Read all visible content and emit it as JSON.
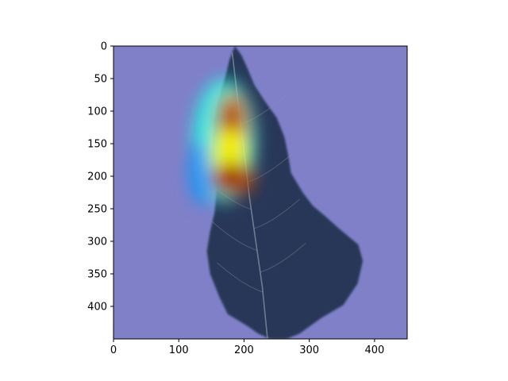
{
  "chart_data": {
    "type": "heatmap",
    "title": "",
    "xlabel": "",
    "ylabel": "",
    "xlim": [
      0,
      450
    ],
    "ylim": [
      450,
      0
    ],
    "x_ticks": [
      0,
      100,
      200,
      300,
      400
    ],
    "y_ticks": [
      0,
      50,
      100,
      150,
      200,
      250,
      300,
      350,
      400
    ],
    "image_size": [
      450,
      450
    ],
    "grid": false,
    "legend": "none",
    "background_overlay_color": "#8080c8",
    "colormap": [
      "#00007f",
      "#0000ff",
      "#00ffff",
      "#ffff00",
      "#ff7f00",
      "#7f0000"
    ],
    "leaf": {
      "outline": [
        [
          186,
          0
        ],
        [
          196,
          14
        ],
        [
          205,
          34
        ],
        [
          216,
          60
        ],
        [
          232,
          85
        ],
        [
          250,
          110
        ],
        [
          262,
          140
        ],
        [
          268,
          170
        ],
        [
          272,
          195
        ],
        [
          290,
          225
        ],
        [
          305,
          245
        ],
        [
          325,
          262
        ],
        [
          345,
          280
        ],
        [
          375,
          305
        ],
        [
          382,
          330
        ],
        [
          374,
          365
        ],
        [
          352,
          398
        ],
        [
          318,
          418
        ],
        [
          285,
          442
        ],
        [
          265,
          450
        ],
        [
          240,
          450
        ],
        [
          222,
          442
        ],
        [
          205,
          430
        ],
        [
          175,
          412
        ],
        [
          162,
          385
        ],
        [
          148,
          350
        ],
        [
          143,
          315
        ],
        [
          148,
          285
        ],
        [
          155,
          255
        ],
        [
          158,
          220
        ],
        [
          150,
          190
        ],
        [
          152,
          150
        ],
        [
          155,
          110
        ],
        [
          162,
          80
        ],
        [
          172,
          45
        ],
        [
          178,
          20
        ]
      ],
      "midrib": [
        [
          182,
          10
        ],
        [
          190,
          80
        ],
        [
          200,
          160
        ],
        [
          208,
          230
        ],
        [
          218,
          300
        ],
        [
          228,
          370
        ],
        [
          236,
          450
        ]
      ],
      "fill_color": "#1f2e4a",
      "vein_color": "#8a9aa8"
    },
    "activation_blobs": [
      {
        "x": 170,
        "y": 145,
        "rx": 48,
        "ry": 95,
        "intensity": 0.42
      },
      {
        "x": 135,
        "y": 195,
        "rx": 18,
        "ry": 48,
        "intensity": 0.32
      },
      {
        "x": 182,
        "y": 122,
        "rx": 26,
        "ry": 52,
        "intensity": 0.82
      },
      {
        "x": 178,
        "y": 170,
        "rx": 30,
        "ry": 48,
        "intensity": 0.6
      },
      {
        "x": 183,
        "y": 205,
        "rx": 34,
        "ry": 26,
        "intensity": 0.9
      },
      {
        "x": 180,
        "y": 112,
        "rx": 12,
        "ry": 20,
        "intensity": 0.95
      },
      {
        "x": 180,
        "y": 203,
        "rx": 14,
        "ry": 12,
        "intensity": 1.0
      }
    ]
  }
}
